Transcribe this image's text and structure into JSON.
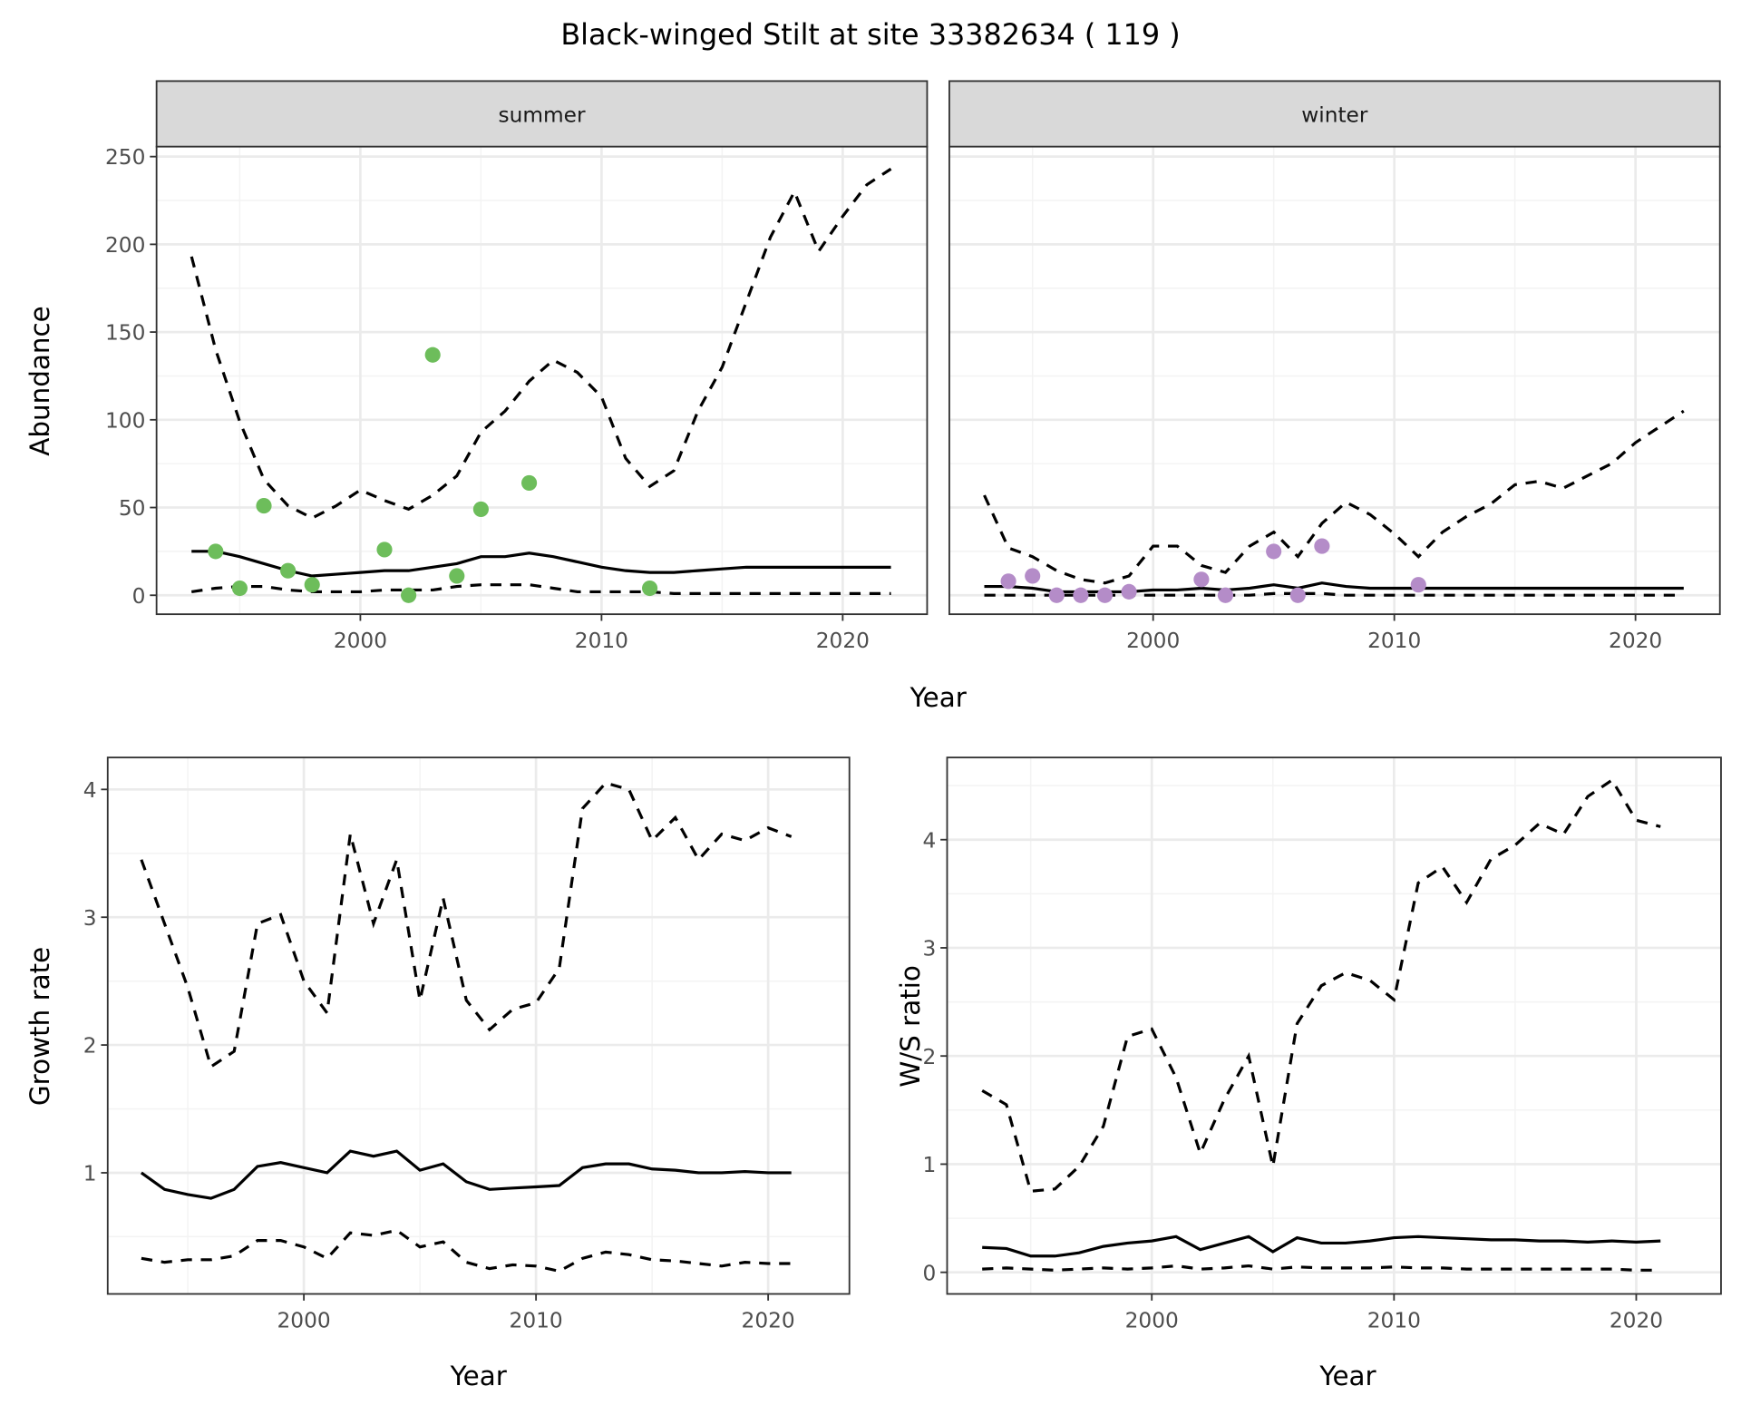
{
  "title": "Black-winged Stilt at site 33382634 ( 119 )",
  "colors": {
    "summer_points": "#6dbd5b",
    "winter_points": "#b48cc8",
    "lines": "#000000",
    "strip_fill": "#d9d9d9"
  },
  "chart_data": [
    {
      "type": "line+scatter",
      "facet": "summer",
      "xlabel": "Year",
      "ylabel": "Abundance",
      "xlim": [
        1991.55,
        2023.5
      ],
      "ylim": [
        -10.8,
        255.7
      ],
      "xticks": [
        2000,
        2010,
        2020
      ],
      "yticks": [
        0,
        50,
        100,
        150,
        200,
        250
      ],
      "grid": true,
      "x": [
        1993,
        1994,
        1995,
        1996,
        1997,
        1998,
        1999,
        2000,
        2001,
        2002,
        2003,
        2004,
        2005,
        2006,
        2007,
        2008,
        2009,
        2010,
        2011,
        2012,
        2013,
        2014,
        2015,
        2016,
        2017,
        2018,
        2019,
        2020,
        2021,
        2022
      ],
      "mean": [
        25,
        25,
        22,
        18,
        14,
        11,
        12,
        13,
        14,
        14,
        16,
        18,
        22,
        22,
        24,
        22,
        19,
        16,
        14,
        13,
        13,
        14,
        15,
        16,
        16,
        16,
        16,
        16,
        16,
        16
      ],
      "upper": [
        193,
        140,
        99,
        66,
        51,
        44,
        51,
        60,
        54,
        49,
        57,
        68,
        93,
        105,
        122,
        134,
        127,
        113,
        78,
        62,
        71,
        105,
        130,
        167,
        204,
        230,
        196,
        216,
        234,
        243
      ],
      "lower": [
        2,
        4,
        5,
        5,
        3,
        2,
        2,
        2,
        3,
        3,
        3,
        5,
        6,
        6,
        6,
        4,
        2,
        2,
        2,
        2,
        1,
        1,
        1,
        1,
        1,
        1,
        1,
        1,
        1,
        1
      ],
      "points": {
        "x": [
          1994,
          1995,
          1996,
          1997,
          1998,
          2001,
          2002,
          2003,
          2004,
          2005,
          2007,
          2012
        ],
        "y": [
          25,
          4,
          51,
          14,
          6,
          26,
          0,
          137,
          11,
          49,
          64,
          4
        ]
      }
    },
    {
      "type": "line+scatter",
      "facet": "winter",
      "xlabel": "Year",
      "ylabel": "Abundance",
      "xlim": [
        1991.55,
        2023.5
      ],
      "ylim": [
        -10.8,
        255.7
      ],
      "xticks": [
        2000,
        2010,
        2020
      ],
      "yticks": [
        0,
        50,
        100,
        150,
        200,
        250
      ],
      "grid": true,
      "x": [
        1993,
        1994,
        1995,
        1996,
        1997,
        1998,
        1999,
        2000,
        2001,
        2002,
        2003,
        2004,
        2005,
        2006,
        2007,
        2008,
        2009,
        2010,
        2011,
        2012,
        2013,
        2014,
        2015,
        2016,
        2017,
        2018,
        2019,
        2020,
        2021,
        2022
      ],
      "mean": [
        5,
        5,
        4,
        2,
        2,
        2,
        2,
        3,
        3,
        4,
        3,
        4,
        6,
        4,
        7,
        5,
        4,
        4,
        4,
        4,
        4,
        4,
        4,
        4,
        4,
        4,
        4,
        4,
        4,
        4
      ],
      "upper": [
        57,
        27,
        22,
        14,
        9,
        7,
        11,
        28,
        28,
        17,
        13,
        28,
        36,
        22,
        41,
        53,
        46,
        35,
        22,
        36,
        45,
        52,
        63,
        65,
        61,
        68,
        75,
        87,
        96,
        105
      ],
      "lower": [
        0,
        0,
        0,
        0,
        0,
        0,
        0,
        0,
        0,
        0,
        0,
        0,
        1,
        1,
        1,
        0,
        0,
        0,
        0,
        0,
        0,
        0,
        0,
        0,
        0,
        0,
        0,
        0,
        0,
        0
      ],
      "points": {
        "x": [
          1994,
          1995,
          1996,
          1997,
          1998,
          1999,
          2002,
          2003,
          2005,
          2006,
          2007,
          2011
        ],
        "y": [
          8,
          11,
          0,
          0,
          0,
          2,
          9,
          0,
          25,
          0,
          28,
          6
        ]
      }
    },
    {
      "type": "line",
      "xlabel": "Year",
      "ylabel": "Growth rate",
      "xlim": [
        1991.55,
        2023.5
      ],
      "ylim": [
        0.052,
        4.25
      ],
      "xticks": [
        2000,
        2010,
        2020
      ],
      "yticks": [
        1,
        2,
        3,
        4
      ],
      "grid": true,
      "x": [
        1993,
        1994,
        1995,
        1996,
        1997,
        1998,
        1999,
        2000,
        2001,
        2002,
        2003,
        2004,
        2005,
        2006,
        2007,
        2008,
        2009,
        2010,
        2011,
        2012,
        2013,
        2014,
        2015,
        2016,
        2017,
        2018,
        2019,
        2020,
        2021
      ],
      "mean": [
        1.0,
        0.87,
        0.83,
        0.8,
        0.87,
        1.05,
        1.08,
        1.04,
        1.0,
        1.17,
        1.13,
        1.17,
        1.02,
        1.07,
        0.93,
        0.87,
        0.88,
        0.89,
        0.9,
        1.04,
        1.07,
        1.07,
        1.03,
        1.02,
        1.0,
        1.0,
        1.01,
        1.0,
        1.0
      ],
      "upper": [
        3.45,
        2.95,
        2.45,
        1.83,
        1.95,
        2.95,
        3.02,
        2.5,
        2.25,
        3.65,
        2.95,
        3.45,
        2.35,
        3.15,
        2.35,
        2.12,
        2.28,
        2.33,
        2.6,
        3.85,
        4.05,
        4.0,
        3.6,
        3.78,
        3.45,
        3.65,
        3.6,
        3.7,
        3.63
      ],
      "lower": [
        0.33,
        0.3,
        0.32,
        0.32,
        0.35,
        0.47,
        0.47,
        0.42,
        0.33,
        0.53,
        0.51,
        0.55,
        0.42,
        0.46,
        0.3,
        0.25,
        0.28,
        0.27,
        0.23,
        0.33,
        0.38,
        0.36,
        0.32,
        0.31,
        0.29,
        0.27,
        0.3,
        0.29,
        0.29
      ]
    },
    {
      "type": "line",
      "xlabel": "Year",
      "ylabel": "W/S ratio",
      "xlim": [
        1991.55,
        2023.5
      ],
      "ylim": [
        -0.2,
        4.76
      ],
      "xticks": [
        2000,
        2010,
        2020
      ],
      "yticks": [
        0,
        1,
        2,
        3,
        4
      ],
      "grid": true,
      "x": [
        1993,
        1994,
        1995,
        1996,
        1997,
        1998,
        1999,
        2000,
        2001,
        2002,
        2003,
        2004,
        2005,
        2006,
        2007,
        2008,
        2009,
        2010,
        2011,
        2012,
        2013,
        2014,
        2015,
        2016,
        2017,
        2018,
        2019,
        2020,
        2021
      ],
      "mean": [
        0.23,
        0.22,
        0.15,
        0.15,
        0.18,
        0.24,
        0.27,
        0.29,
        0.33,
        0.21,
        0.27,
        0.33,
        0.19,
        0.32,
        0.27,
        0.27,
        0.29,
        0.32,
        0.33,
        0.32,
        0.31,
        0.3,
        0.3,
        0.29,
        0.29,
        0.28,
        0.29,
        0.28,
        0.29
      ],
      "upper": [
        1.68,
        1.55,
        0.75,
        0.77,
        0.98,
        1.35,
        2.18,
        2.25,
        1.8,
        1.1,
        1.6,
        2.0,
        0.98,
        2.3,
        2.65,
        2.77,
        2.7,
        2.52,
        3.6,
        3.75,
        3.42,
        3.82,
        3.95,
        4.15,
        4.05,
        4.4,
        4.55,
        4.18,
        4.12
      ],
      "lower": [
        0.03,
        0.04,
        0.03,
        0.02,
        0.03,
        0.04,
        0.03,
        0.04,
        0.06,
        0.03,
        0.04,
        0.06,
        0.03,
        0.05,
        0.04,
        0.04,
        0.04,
        0.05,
        0.04,
        0.04,
        0.03,
        0.03,
        0.03,
        0.03,
        0.03,
        0.03,
        0.03,
        0.02,
        0.02
      ]
    }
  ]
}
